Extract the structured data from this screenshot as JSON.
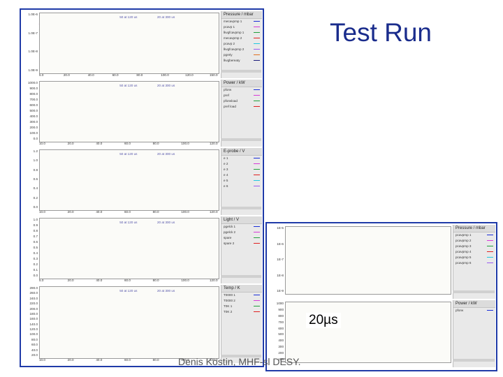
{
  "slide": {
    "title": "Test Run",
    "overlay_label": "20µs",
    "footer": "Denis Kostin, MHF-sl DESY."
  },
  "colors": {
    "window_border": "#1f3aa8",
    "blue": "#1a2ed8",
    "green": "#21a03c",
    "magenta": "#d83ad8",
    "purple": "#9a5cf0",
    "red": "#e02020",
    "cyan": "#20c8e0",
    "navy": "#1c1c7a",
    "orange": "#e07020",
    "marker_blue": "#3050ff",
    "marker_red": "#ff3030"
  },
  "main_window": {
    "panels": [
      {
        "id": "pressure",
        "legend_title": "Pressure / mbar",
        "legend_items": [
          "mecavpmp 1",
          "pcavp 1",
          "lkvgfcavpmp 1",
          "mecavpmp 2",
          "pcavp 2",
          "lkvgfcavpmp 2",
          "pgrely",
          "lkvgbereaty"
        ],
        "y_ticks": [
          "1.0E-6",
          "1.0E-7",
          "1.0E-8",
          "1.0E-9"
        ],
        "x_ticks": [
          "5.0",
          "20.0",
          "40.0",
          "60.0",
          "80.0",
          "100.0",
          "120.0",
          "150.0"
        ],
        "annotations": [
          "50 at 120 us",
          "20 at 300 us"
        ]
      },
      {
        "id": "power-kw",
        "legend_title": "Power / kW",
        "legend_items": [
          "pforw",
          "pref",
          "pforwload",
          "pref load"
        ],
        "y_ticks": [
          "1000.0",
          "900.0",
          "800.0",
          "700.0",
          "600.0",
          "500.0",
          "400.0",
          "300.0",
          "200.0",
          "100.0",
          "0.0"
        ],
        "x_ticks": [
          "10.0",
          "20.0",
          "40.0",
          "60.0",
          "80.0",
          "100.0",
          "120.0"
        ],
        "annotations": [
          "50 at 120 us",
          "20 at 300 us"
        ]
      },
      {
        "id": "e-probe",
        "legend_title": "E-probe / V",
        "legend_items": [
          "e 1",
          "e 2",
          "e 3",
          "e 4",
          "e 5",
          "e 6"
        ],
        "y_ticks": [
          "1.2",
          "1.0",
          "0.8",
          "0.6",
          "0.4",
          "0.2",
          "0.0"
        ],
        "x_ticks": [
          "10.0",
          "20.0",
          "40.0",
          "60.0",
          "80.0",
          "100.0",
          "120.0"
        ],
        "annotations": [
          "50 at 120 us",
          "20 at 300 us"
        ]
      },
      {
        "id": "light",
        "legend_title": "Light / V",
        "legend_items": [
          "pgelck 1",
          "pgelck 2",
          "spare",
          "spare 2"
        ],
        "y_ticks": [
          "1.0",
          "0.9",
          "0.8",
          "0.7",
          "0.6",
          "0.5",
          "0.4",
          "0.3",
          "0.2",
          "0.1",
          "0.0"
        ],
        "x_ticks": [
          "5.0",
          "20.0",
          "40.0",
          "60.0",
          "80.0",
          "100.0",
          "120.0"
        ],
        "annotations": [
          "50 at 120 us",
          "20 at 300 us"
        ]
      },
      {
        "id": "temperature",
        "legend_title": "Temp / K",
        "legend_items": [
          "T0000 1",
          "T0000 2",
          "T0K 1",
          "T0K 2"
        ],
        "y_ticks": [
          "290.0",
          "260.0",
          "240.0",
          "220.0",
          "200.0",
          "180.0",
          "160.0",
          "140.0",
          "120.0",
          "100.0",
          "80.0",
          "60.0",
          "40.0",
          "20.0"
        ],
        "x_ticks": [
          "10.0",
          "20.0",
          "40.0",
          "60.0",
          "80.0",
          "100.0",
          "120.0"
        ],
        "annotations": [
          "50 at 120 us",
          "20 at 300 us"
        ]
      }
    ]
  },
  "second_window": {
    "panels": [
      {
        "id": "pressure-2",
        "legend_title": "Pressure / mbar",
        "legend_items": [
          "pcavpmp 1",
          "pcavpmp 2",
          "pcavpmp 3",
          "pcavpmp 4",
          "pcavpmp 5",
          "pcavpmp 6"
        ],
        "y_ticks": [
          "1E-5",
          "1E-6",
          "1E-7",
          "1E-8",
          "1E-9"
        ],
        "x_ticks": []
      },
      {
        "id": "power-2",
        "legend_title": "Power / kW",
        "legend_items": [
          "pforw"
        ],
        "y_ticks": [
          "1000",
          "900",
          "800",
          "700",
          "600",
          "500",
          "400",
          "300",
          "200",
          "100"
        ],
        "x_ticks": []
      }
    ]
  }
}
